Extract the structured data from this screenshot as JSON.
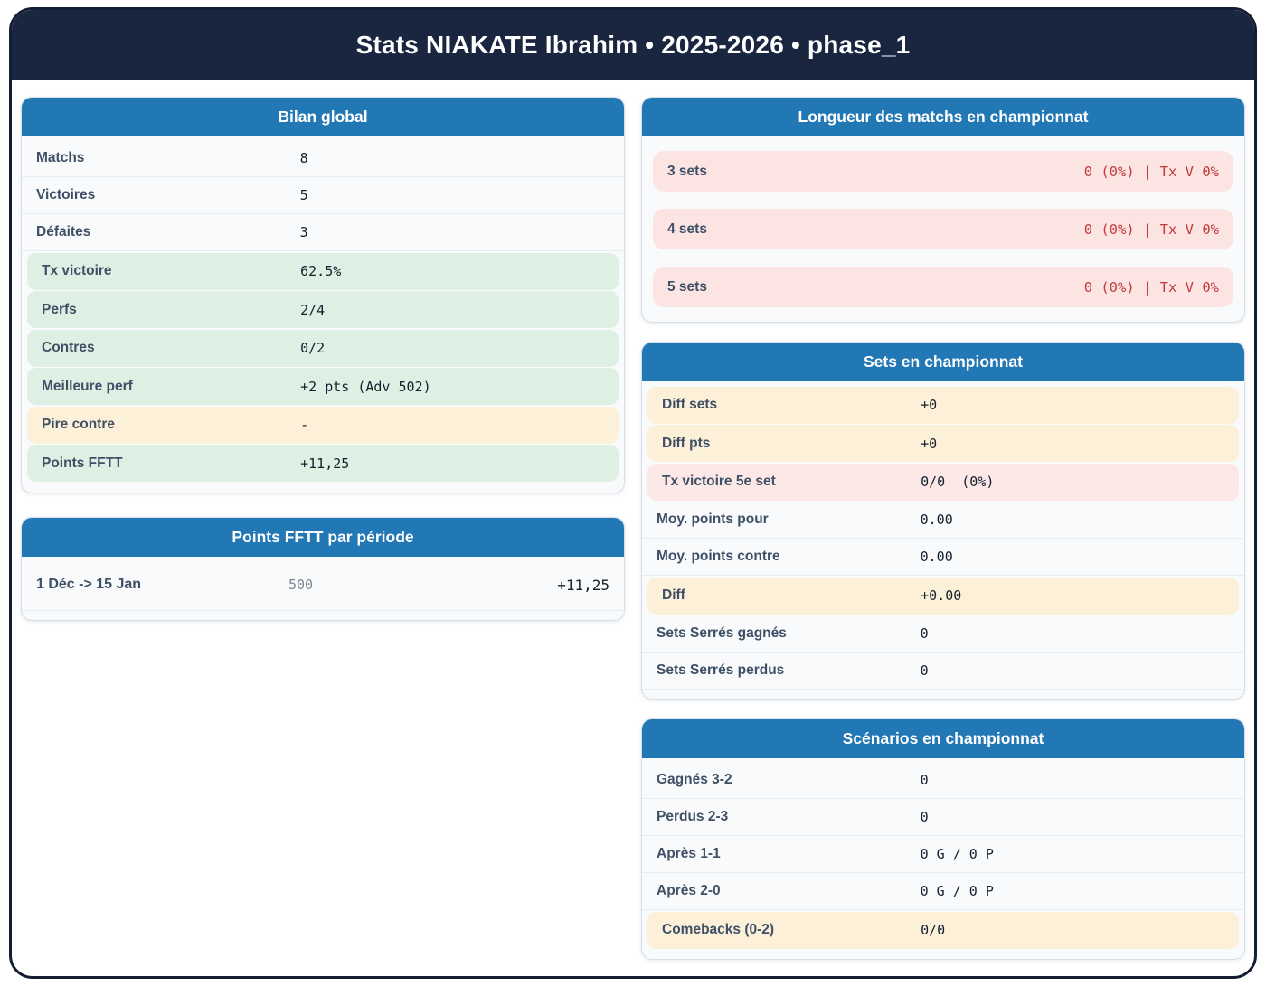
{
  "header": {
    "title": "Stats NIAKATE Ibrahim • 2025-2026 • phase_1"
  },
  "colors": {
    "navy": "#1a2540",
    "card_header_blue": "#2277b5",
    "green_row": "#def0e3",
    "orange_row": "#fdf0d9",
    "pink_row": "#fce8e6",
    "pink_pill": "#fce4e3",
    "red_text": "#c43b3c",
    "label_text": "#3f5066",
    "value_text": "#15202e"
  },
  "cards": {
    "bilan": {
      "title": "Bilan global",
      "rows": [
        {
          "label": "Matchs",
          "value": "8",
          "variant": "plain"
        },
        {
          "label": "Victoires",
          "value": "5",
          "variant": "plain"
        },
        {
          "label": "Défaites",
          "value": "3",
          "variant": "plain"
        },
        {
          "label": "Tx victoire",
          "value": "62.5%",
          "variant": "green"
        },
        {
          "label": "Perfs",
          "value": "2/4",
          "variant": "green"
        },
        {
          "label": "Contres",
          "value": "0/2",
          "variant": "green"
        },
        {
          "label": "Meilleure perf",
          "value": "+2 pts (Adv 502)",
          "variant": "green"
        },
        {
          "label": "Pire contre",
          "value": "-",
          "variant": "orange"
        },
        {
          "label": "Points FFTT",
          "value": "+11,25",
          "variant": "green"
        }
      ]
    },
    "periode": {
      "title": "Points FFTT par période",
      "rows": [
        {
          "label": "1 Déc -> 15 Jan",
          "mid": "500",
          "value": "+11,25"
        }
      ]
    },
    "longueur": {
      "title": "Longueur des matchs en championnat",
      "rows": [
        {
          "label": "3 sets",
          "value": "0 (0%) | Tx V 0%"
        },
        {
          "label": "4 sets",
          "value": "0 (0%) | Tx V 0%"
        },
        {
          "label": "5 sets",
          "value": "0 (0%) | Tx V 0%"
        }
      ]
    },
    "sets": {
      "title": "Sets en championnat",
      "rows": [
        {
          "label": "Diff sets",
          "value": "+0",
          "variant": "orange"
        },
        {
          "label": "Diff pts",
          "value": "+0",
          "variant": "orange"
        },
        {
          "label": "Tx victoire 5e set",
          "value": "0/0  (0%)",
          "variant": "pink"
        },
        {
          "label": "Moy. points pour",
          "value": "0.00",
          "variant": "plain"
        },
        {
          "label": "Moy. points contre",
          "value": "0.00",
          "variant": "plain"
        },
        {
          "label": "Diff",
          "value": "+0.00",
          "variant": "orange"
        },
        {
          "label": "Sets Serrés gagnés",
          "value": "0",
          "variant": "plain"
        },
        {
          "label": "Sets Serrés perdus",
          "value": "0",
          "variant": "plain"
        }
      ]
    },
    "scenarios": {
      "title": "Scénarios en championnat",
      "rows": [
        {
          "label": "Gagnés 3-2",
          "value": "0",
          "variant": "plain"
        },
        {
          "label": "Perdus 2-3",
          "value": "0",
          "variant": "plain"
        },
        {
          "label": "Après 1-1",
          "value": "0 G / 0 P",
          "variant": "plain"
        },
        {
          "label": "Après 2-0",
          "value": "0 G / 0 P",
          "variant": "plain"
        },
        {
          "label": "Comebacks (0-2)",
          "value": "0/0",
          "variant": "orange"
        }
      ]
    }
  }
}
